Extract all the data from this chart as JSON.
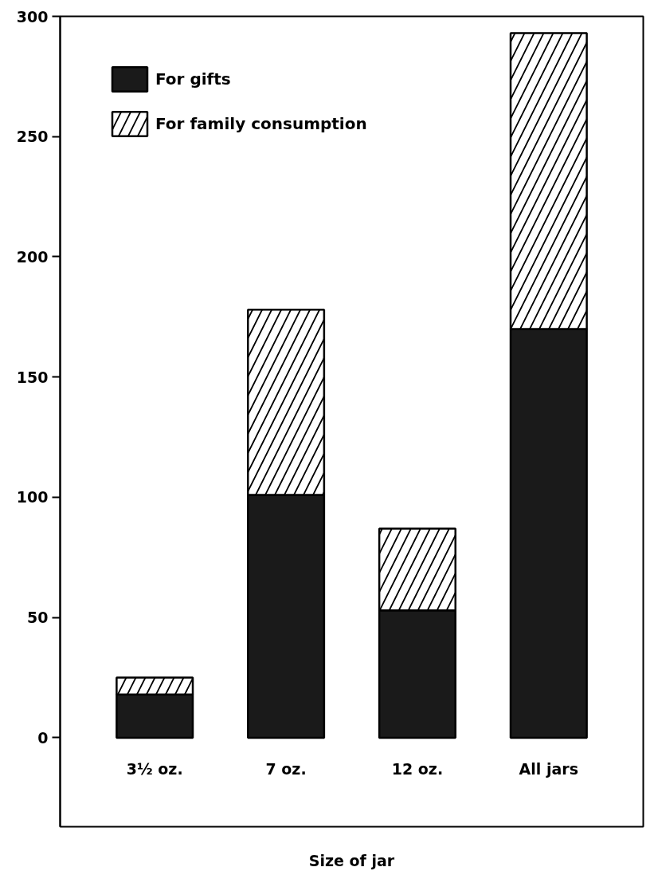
{
  "chart_data": {
    "type": "bar",
    "stacked": true,
    "xlabel": "Size of jar",
    "categories": [
      "3½ oz.",
      "7 oz.",
      "12 oz.",
      "All jars"
    ],
    "series": [
      {
        "name": "For gifts",
        "color": "#1a1a1a",
        "values": [
          18,
          101,
          53,
          170
        ]
      },
      {
        "name": "For family consumption",
        "color": "#ffffff",
        "values": [
          7,
          77,
          34,
          123
        ]
      }
    ],
    "ylim": [
      -37,
      300
    ],
    "yticks": [
      0,
      50,
      100,
      150,
      200,
      250,
      300
    ],
    "grid": false,
    "legend": "top left"
  }
}
